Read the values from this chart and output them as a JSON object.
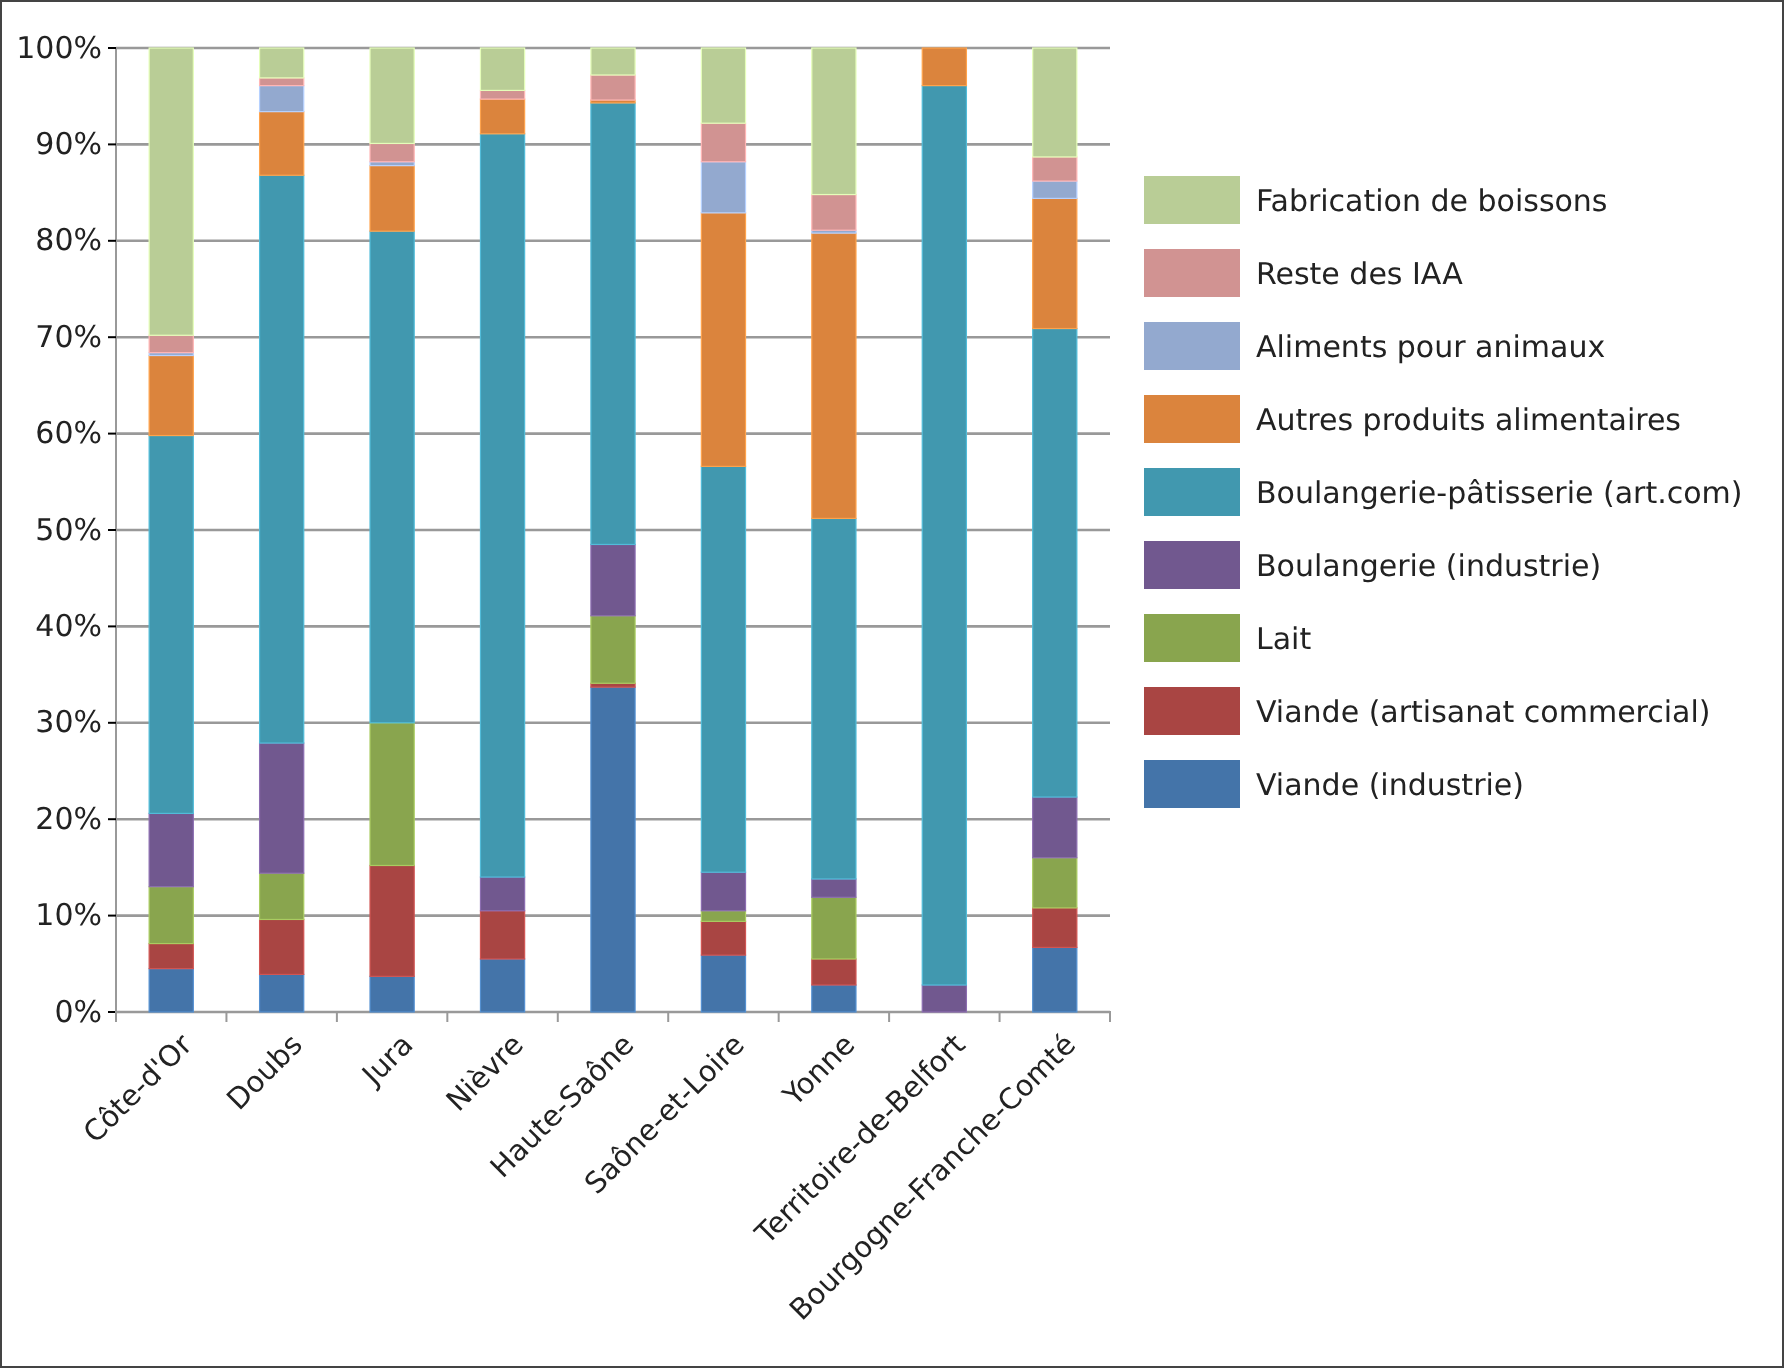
{
  "chart_data": {
    "type": "bar",
    "stacked": true,
    "categories": [
      "Côte-d'Or",
      "Doubs",
      "Jura",
      "Nièvre",
      "Haute-Saône",
      "Saône-et-Loire",
      "Yonne",
      "Territoire-de-Belfort",
      "Bourgogne-Franche-Comté"
    ],
    "ylim": [
      0,
      100
    ],
    "yticks": [
      {
        "value": 0,
        "label": "0%"
      },
      {
        "value": 10,
        "label": "10%"
      },
      {
        "value": 20,
        "label": "20%"
      },
      {
        "value": 30,
        "label": "30%"
      },
      {
        "value": 40,
        "label": "40%"
      },
      {
        "value": 50,
        "label": "50%"
      },
      {
        "value": 60,
        "label": "60%"
      },
      {
        "value": 70,
        "label": "70%"
      },
      {
        "value": 80,
        "label": "80%"
      },
      {
        "value": 90,
        "label": "90%"
      },
      {
        "value": 100,
        "label": "100%"
      }
    ],
    "grid": "y",
    "legend": "right",
    "series": [
      {
        "name": "Viande (industrie)",
        "color": "#4474a9",
        "values": [
          4.5,
          3.9,
          3.7,
          5.5,
          33.7,
          5.9,
          2.8,
          0,
          6.7
        ]
      },
      {
        "name": "Viande (artisanat commercial)",
        "color": "#a94543",
        "values": [
          2.6,
          5.7,
          11.5,
          5.0,
          0.4,
          3.5,
          2.7,
          0,
          4.1
        ]
      },
      {
        "name": "Lait",
        "color": "#89a54e",
        "values": [
          5.9,
          4.8,
          14.8,
          0,
          7.0,
          1.1,
          6.4,
          0,
          5.2
        ]
      },
      {
        "name": "Boulangerie (industrie)",
        "color": "#71588f",
        "values": [
          7.6,
          13.5,
          0,
          3.5,
          7.4,
          4.0,
          1.9,
          2.8,
          6.3
        ]
      },
      {
        "name": "Boulangerie-pâtisserie (art.com)",
        "color": "#4198af",
        "values": [
          39.2,
          58.9,
          51.0,
          77.1,
          45.8,
          42.1,
          37.4,
          93.3,
          48.6
        ]
      },
      {
        "name": "Autres produits alimentaires",
        "color": "#db843d",
        "values": [
          8.3,
          6.6,
          6.8,
          3.6,
          0.3,
          26.3,
          29.6,
          3.9,
          13.5
        ]
      },
      {
        "name": "Aliments pour animaux",
        "color": "#93a9cf",
        "values": [
          0.3,
          2.7,
          0.4,
          0,
          0,
          5.3,
          0.3,
          0,
          1.8
        ]
      },
      {
        "name": "Reste des IAA",
        "color": "#d19392",
        "values": [
          1.8,
          0.8,
          1.9,
          0.9,
          2.6,
          4.0,
          3.7,
          0,
          2.5
        ]
      },
      {
        "name": "Fabrication de boissons",
        "color": "#b9cd96",
        "values": [
          29.8,
          3.1,
          9.9,
          4.4,
          2.8,
          7.8,
          15.2,
          0,
          11.3
        ]
      }
    ]
  }
}
